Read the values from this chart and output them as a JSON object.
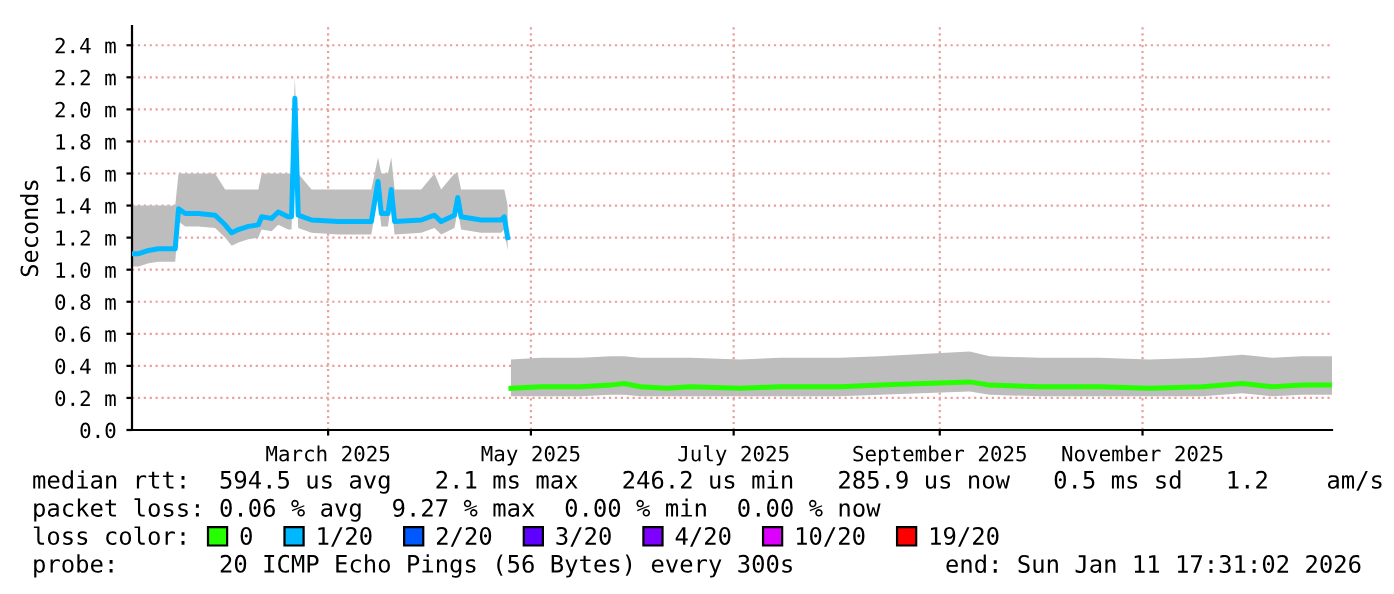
{
  "chart_data": {
    "type": "line",
    "ylabel": "Seconds",
    "legend_title": "loss color:",
    "legend": "bottom",
    "grid": true,
    "marker": "none",
    "line_style": "solid",
    "xlim": [
      "2025-01-15",
      "2026-01-11"
    ],
    "xticks": [
      {
        "value": "2025-03-15",
        "label": "March 2025"
      },
      {
        "value": "2025-05-15",
        "label": "May 2025"
      },
      {
        "value": "2025-07-15",
        "label": "July 2025"
      },
      {
        "value": "2025-09-15",
        "label": "September 2025"
      },
      {
        "value": "2025-11-15",
        "label": "November 2025"
      }
    ],
    "ylim": [
      0,
      2.52
    ],
    "yticks": [
      {
        "value": 0,
        "label": "0.0"
      },
      {
        "value": 0.2,
        "label": "0.2 m"
      },
      {
        "value": 0.4,
        "label": "0.4 m"
      },
      {
        "value": 0.6,
        "label": "0.6 m"
      },
      {
        "value": 0.8,
        "label": "0.8 m"
      },
      {
        "value": 1.0,
        "label": "1.0 m"
      },
      {
        "value": 1.2,
        "label": "1.2 m"
      },
      {
        "value": 1.4,
        "label": "1.4 m"
      },
      {
        "value": 1.6,
        "label": "1.6 m"
      },
      {
        "value": 1.8,
        "label": "1.8 m"
      },
      {
        "value": 2.0,
        "label": "2.0 m"
      },
      {
        "value": 2.2,
        "label": "2.2 m"
      },
      {
        "value": 2.4,
        "label": "2.4 m"
      }
    ],
    "series": [
      {
        "name": "0",
        "color": "#26ff00",
        "x": [
          "2025-05-09",
          "2025-05-18",
          "2025-05-30",
          "2025-06-08",
          "2025-06-12",
          "2025-06-17",
          "2025-06-25",
          "2025-07-02",
          "2025-07-17",
          "2025-07-29",
          "2025-08-16",
          "2025-08-28",
          "2025-09-24",
          "2025-09-30",
          "2025-10-15",
          "2025-11-02",
          "2025-11-17",
          "2025-12-03",
          "2025-12-15",
          "2025-12-24",
          "2026-01-02",
          "2026-01-11"
        ],
        "values": [
          0.26,
          0.27,
          0.27,
          0.28,
          0.29,
          0.27,
          0.26,
          0.27,
          0.26,
          0.27,
          0.27,
          0.28,
          0.3,
          0.28,
          0.27,
          0.27,
          0.26,
          0.27,
          0.29,
          0.27,
          0.28,
          0.28
        ],
        "lower": [
          0.21,
          0.21,
          0.21,
          0.22,
          0.22,
          0.21,
          0.21,
          0.21,
          0.21,
          0.21,
          0.21,
          0.22,
          0.24,
          0.22,
          0.21,
          0.21,
          0.21,
          0.21,
          0.23,
          0.21,
          0.22,
          0.22
        ],
        "upper": [
          0.44,
          0.45,
          0.45,
          0.46,
          0.46,
          0.45,
          0.45,
          0.45,
          0.44,
          0.45,
          0.45,
          0.46,
          0.49,
          0.46,
          0.45,
          0.45,
          0.44,
          0.45,
          0.47,
          0.45,
          0.46,
          0.46
        ]
      },
      {
        "name": "1/20",
        "color": "#00b8ff",
        "x": [
          "2025-01-15",
          "2025-01-17",
          "2025-01-20",
          "2025-01-23",
          "2025-01-28",
          "2025-01-29",
          "2025-01-31",
          "2025-02-04",
          "2025-02-09",
          "2025-02-12",
          "2025-02-14",
          "2025-02-16",
          "2025-02-19",
          "2025-02-22",
          "2025-02-23",
          "2025-02-26",
          "2025-02-28",
          "2025-03-03",
          "2025-03-04",
          "2025-03-05",
          "2025-03-06",
          "2025-03-10",
          "2025-03-18",
          "2025-03-28",
          "2025-03-30",
          "2025-03-31",
          "2025-04-02",
          "2025-04-03",
          "2025-04-04",
          "2025-04-12",
          "2025-04-16",
          "2025-04-18",
          "2025-04-22",
          "2025-04-23",
          "2025-04-24",
          "2025-04-30",
          "2025-05-06",
          "2025-05-07",
          "2025-05-08"
        ],
        "values": [
          1.1,
          1.1,
          1.12,
          1.13,
          1.13,
          1.38,
          1.35,
          1.35,
          1.34,
          1.28,
          1.23,
          1.25,
          1.27,
          1.28,
          1.33,
          1.32,
          1.36,
          1.33,
          1.33,
          2.07,
          1.34,
          1.31,
          1.3,
          1.3,
          1.55,
          1.35,
          1.35,
          1.5,
          1.3,
          1.31,
          1.34,
          1.3,
          1.34,
          1.45,
          1.33,
          1.31,
          1.31,
          1.33,
          1.2
        ],
        "lower": [
          1.02,
          1.02,
          1.04,
          1.05,
          1.05,
          1.3,
          1.27,
          1.27,
          1.26,
          1.2,
          1.15,
          1.17,
          1.19,
          1.2,
          1.25,
          1.24,
          1.28,
          1.25,
          1.25,
          1.99,
          1.26,
          1.23,
          1.22,
          1.22,
          1.47,
          1.27,
          1.27,
          1.42,
          1.22,
          1.23,
          1.26,
          1.22,
          1.26,
          1.37,
          1.25,
          1.23,
          1.23,
          1.25,
          1.12
        ],
        "upper": [
          1.4,
          1.4,
          1.4,
          1.4,
          1.4,
          1.6,
          1.6,
          1.6,
          1.6,
          1.5,
          1.5,
          1.5,
          1.5,
          1.5,
          1.6,
          1.6,
          1.6,
          1.6,
          1.6,
          2.2,
          1.6,
          1.5,
          1.5,
          1.5,
          1.7,
          1.6,
          1.6,
          1.7,
          1.5,
          1.5,
          1.6,
          1.5,
          1.6,
          1.6,
          1.5,
          1.5,
          1.5,
          1.5,
          1.4
        ]
      },
      {
        "name": "2/20",
        "color": "#0059ff"
      },
      {
        "name": "3/20",
        "color": "#5e00ff"
      },
      {
        "name": "4/20",
        "color": "#7e00ff"
      },
      {
        "name": "10/20",
        "color": "#dd00ff"
      },
      {
        "name": "19/20",
        "color": "#ff0000"
      }
    ],
    "annotations": [
      "median rtt:  594.5 us avg   2.1 ms max   246.2 us min   285.9 us now   0.5 ms sd   1.2    am/s",
      "packet loss: 0.06 % avg  9.27 % max  0.00 % min  0.00 % now",
      "probe:       20 ICMP Echo Pings (56 Bytes) every 300s",
      "end: Sun Jan 11 17:31:02 2026"
    ]
  }
}
